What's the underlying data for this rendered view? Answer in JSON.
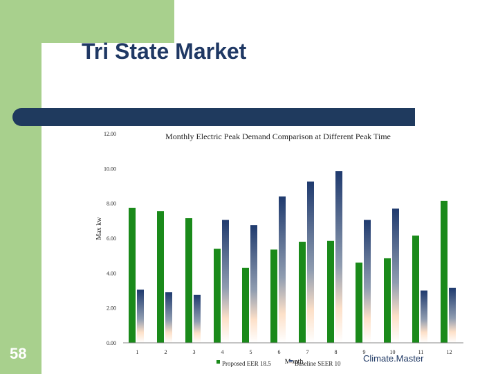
{
  "slide": {
    "title": "Tri State Market",
    "number": "58",
    "brand": "Climate.Master"
  },
  "colors": {
    "green_panel": "#a8d08d",
    "title_bar": "#1f3a5e",
    "series_proposed": "#1a8a1a",
    "series_baseline_top": "#1f3a6e",
    "series_baseline_bottom": "#fde0c8"
  },
  "chart_data": {
    "type": "bar",
    "title": "Monthly Electric Peak Demand Comparison at Different Peak Time",
    "xlabel": "Month",
    "ylabel": "Max kw",
    "ylim": [
      0,
      12
    ],
    "yticks": [
      "0.00",
      "2.00",
      "4.00",
      "6.00",
      "8.00",
      "10.00",
      "12.00"
    ],
    "categories": [
      "1",
      "2",
      "3",
      "4",
      "5",
      "6",
      "7",
      "8",
      "9",
      "10",
      "11",
      "12"
    ],
    "series": [
      {
        "name": "Proposed EER 18.5",
        "values": [
          7.75,
          7.55,
          7.15,
          5.4,
          4.3,
          5.35,
          5.8,
          5.85,
          4.6,
          4.85,
          6.15,
          8.15
        ]
      },
      {
        "name": "Baseline SEER 10",
        "values": [
          3.05,
          2.9,
          2.75,
          7.05,
          6.75,
          8.4,
          9.25,
          9.85,
          7.05,
          7.7,
          3.0,
          3.15
        ]
      }
    ],
    "legend_position": "bottom",
    "grid": false
  }
}
